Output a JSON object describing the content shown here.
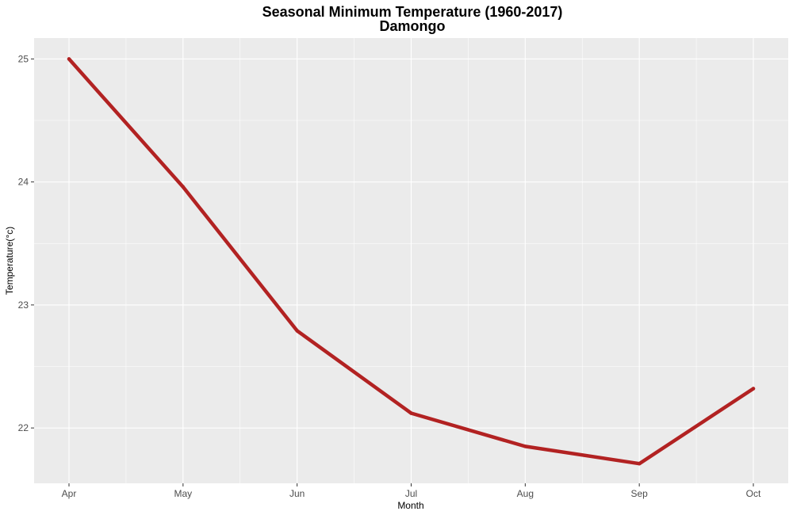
{
  "chart_data": {
    "type": "line",
    "title": "Seasonal Minimum Temperature (1960-2017)",
    "subtitle": "Damongo",
    "xlabel": "Month",
    "ylabel": "Temperature(°c)",
    "categories": [
      "Apr",
      "May",
      "Jun",
      "Jul",
      "Aug",
      "Sep",
      "Oct"
    ],
    "series": [
      {
        "values": [
          25.0,
          23.96,
          22.79,
          22.12,
          21.85,
          21.71,
          22.32
        ]
      }
    ],
    "yticks": [
      "22",
      "23",
      "24",
      "25"
    ],
    "ylim": [
      21.55,
      25.17
    ],
    "grid": true,
    "colors": {
      "line": "#b22222",
      "panel": "#ebebeb",
      "grid": "#ffffff"
    }
  }
}
